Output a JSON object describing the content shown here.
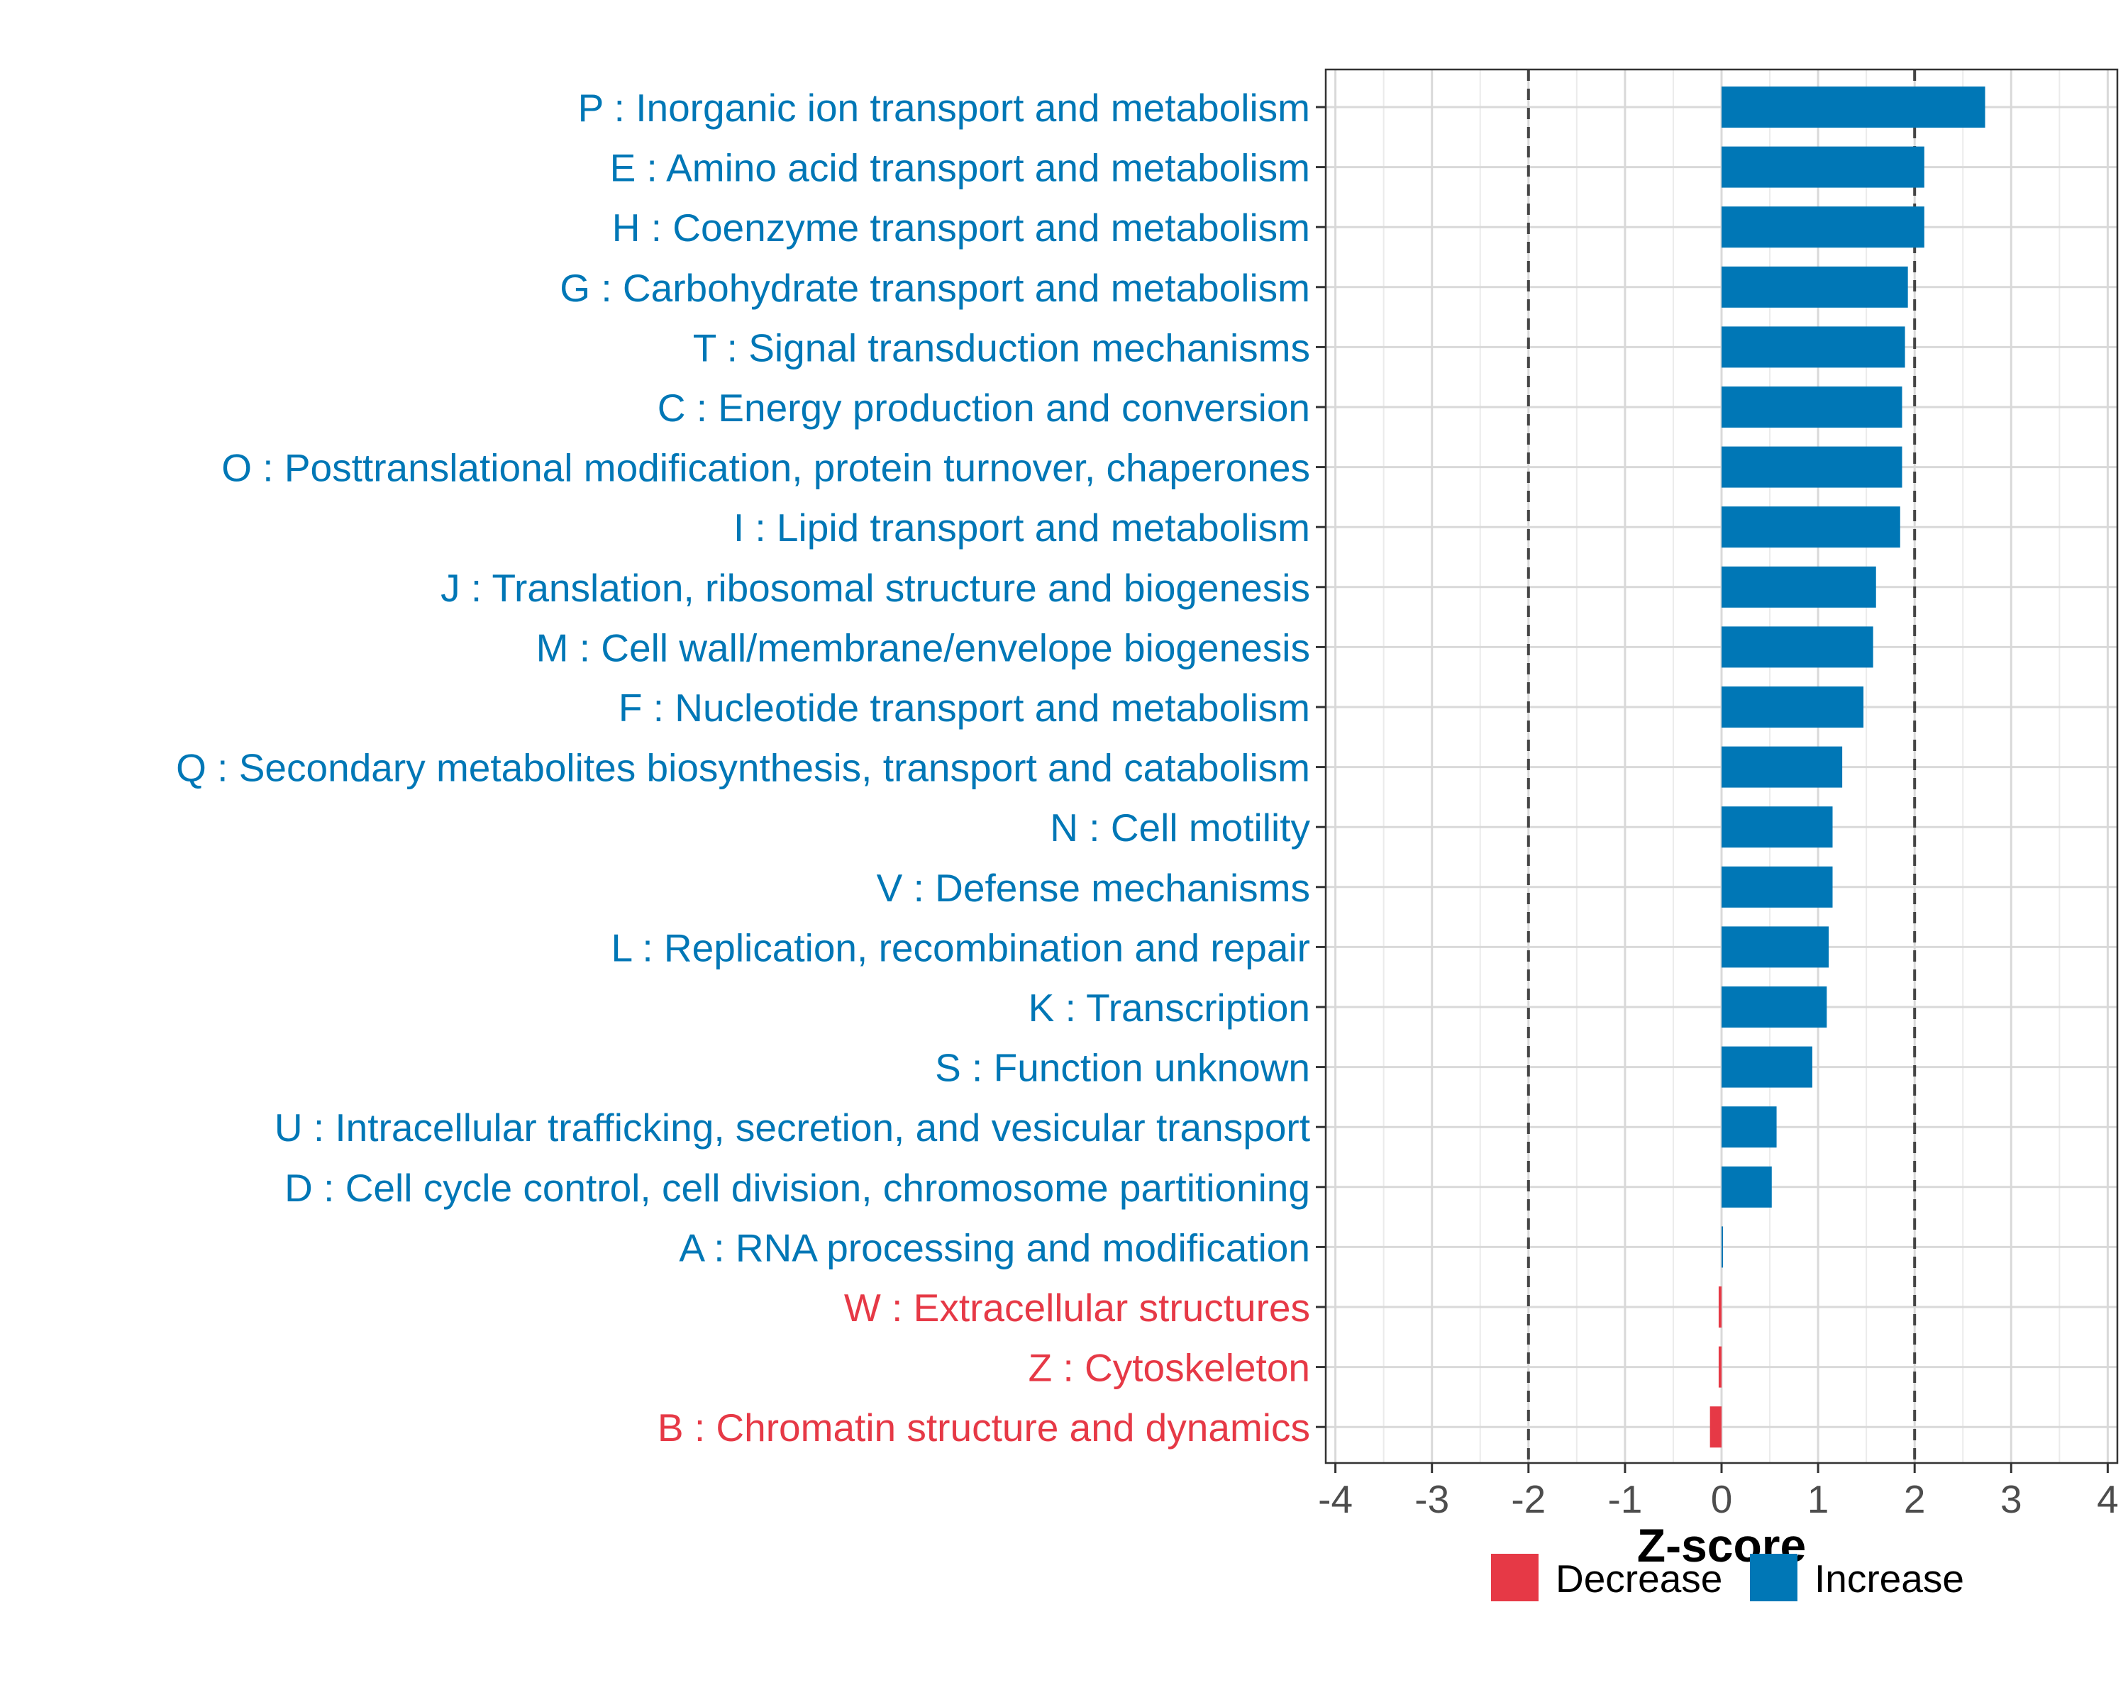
{
  "chart_data": {
    "type": "bar",
    "orientation": "horizontal",
    "categories": [
      "P : Inorganic ion transport and metabolism",
      "E : Amino acid transport and metabolism",
      "H : Coenzyme transport and metabolism",
      "G : Carbohydrate transport and metabolism",
      "T : Signal transduction mechanisms",
      "C : Energy production and conversion",
      "O : Posttranslational modification, protein turnover, chaperones",
      "I : Lipid transport and metabolism",
      "J : Translation, ribosomal structure and biogenesis",
      "M : Cell wall/membrane/envelope biogenesis",
      "F : Nucleotide transport and metabolism",
      "Q : Secondary metabolites biosynthesis, transport and catabolism",
      "N : Cell motility",
      "V : Defense mechanisms",
      "L : Replication, recombination and repair",
      "K : Transcription",
      "S : Function unknown",
      "U : Intracellular trafficking, secretion, and vesicular transport",
      "D : Cell cycle control, cell division, chromosome partitioning",
      "A : RNA processing and modification",
      "W : Extracellular structures",
      "Z : Cytoskeleton",
      "B : Chromatin structure and dynamics"
    ],
    "values": [
      2.73,
      2.1,
      2.1,
      1.93,
      1.9,
      1.87,
      1.87,
      1.85,
      1.6,
      1.57,
      1.47,
      1.25,
      1.15,
      1.15,
      1.11,
      1.09,
      0.94,
      0.57,
      0.52,
      0.01,
      -0.03,
      -0.03,
      -0.12
    ],
    "directions": [
      "Increase",
      "Increase",
      "Increase",
      "Increase",
      "Increase",
      "Increase",
      "Increase",
      "Increase",
      "Increase",
      "Increase",
      "Increase",
      "Increase",
      "Increase",
      "Increase",
      "Increase",
      "Increase",
      "Increase",
      "Increase",
      "Increase",
      "Increase",
      "Decrease",
      "Decrease",
      "Decrease"
    ],
    "xlabel": "Z-score",
    "xlim": [
      -4.1,
      4.1
    ],
    "xticks": [
      -4,
      -3,
      -2,
      -1,
      0,
      1,
      2,
      3,
      4
    ],
    "xtick_labels": [
      "-4",
      "-3",
      "-2",
      "-1",
      "0",
      "1",
      "2",
      "3",
      "4"
    ],
    "reference_lines": [
      -2,
      2
    ],
    "grid": true,
    "legend": {
      "position": "bottom",
      "items": [
        {
          "label": "Decrease",
          "color": "#E63946"
        },
        {
          "label": "Increase",
          "color": "#0077B6"
        }
      ]
    },
    "colors": {
      "Increase": "#0077B6",
      "Decrease": "#E63946"
    }
  }
}
